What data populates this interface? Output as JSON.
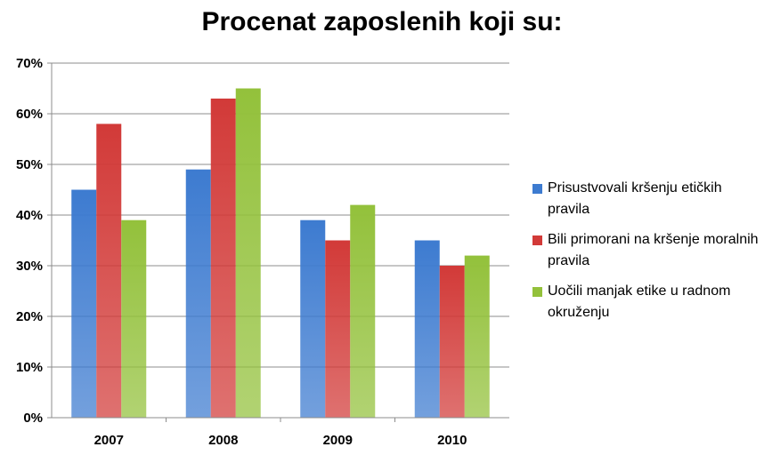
{
  "chart_data": {
    "type": "bar",
    "title": "Procenat zaposlenih koji su:",
    "categories": [
      "2007",
      "2008",
      "2009",
      "2010"
    ],
    "series": [
      {
        "name": "Prisustvovali kršenju etičkih pravila",
        "values": [
          45,
          49,
          39,
          35
        ],
        "color": "#3d7bd0"
      },
      {
        "name": "Bili primorani na kršenje moralnih pravila",
        "values": [
          58,
          63,
          35,
          30
        ],
        "color": "#d23a38"
      },
      {
        "name": "Uočili manjak etike u radnom okruženju",
        "values": [
          39,
          65,
          42,
          32
        ],
        "color": "#93c13b"
      }
    ],
    "yticks": [
      "0%",
      "10%",
      "20%",
      "30%",
      "40%",
      "50%",
      "60%",
      "70%"
    ],
    "ylim": [
      0,
      70
    ],
    "unit": "%",
    "grid": true,
    "legend_position": "right"
  }
}
